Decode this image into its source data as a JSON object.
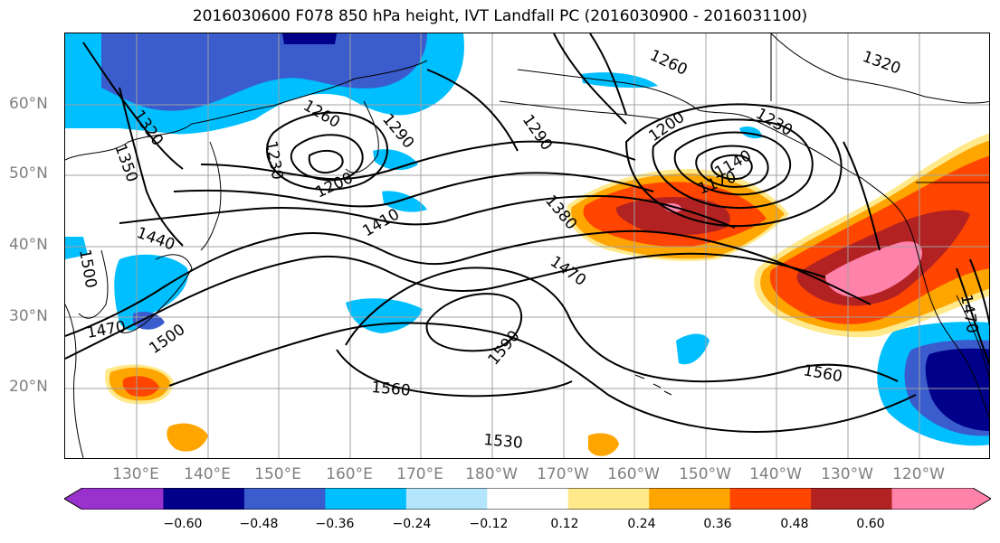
{
  "title": "2016030600 F078 850 hPa height, IVT Landfall PC (2016030900 - 2016031100)",
  "lat_labels": [
    "60°N",
    "50°N",
    "40°N",
    "30°N",
    "20°N"
  ],
  "lon_labels": [
    "130°E",
    "140°E",
    "150°E",
    "160°E",
    "170°E",
    "180°W",
    "170°W",
    "160°W",
    "150°W",
    "140°W",
    "130°W",
    "120°W"
  ],
  "contour_labels": [
    "1320",
    "1350",
    "1260",
    "1230",
    "1200",
    "1290",
    "1410",
    "1440",
    "1500",
    "1470",
    "1500",
    "1290",
    "1260",
    "1320",
    "1230",
    "1200",
    "1140",
    "1170",
    "1380",
    "1470",
    "1560",
    "1590",
    "1560",
    "1530",
    "1470"
  ],
  "colorbar": {
    "ticks": [
      "−0.60",
      "−0.48",
      "−0.36",
      "−0.24",
      "−0.12",
      "0.12",
      "0.24",
      "0.36",
      "0.48",
      "0.60"
    ],
    "colors": [
      "#9932cc",
      "#00008b",
      "#3a5ccc",
      "#00bfff",
      "#b3e5fc",
      "#ffffff",
      "#ffe98a",
      "#ffa500",
      "#ff4500",
      "#b22222",
      "#ff82ab",
      "#ff82ab"
    ]
  }
}
